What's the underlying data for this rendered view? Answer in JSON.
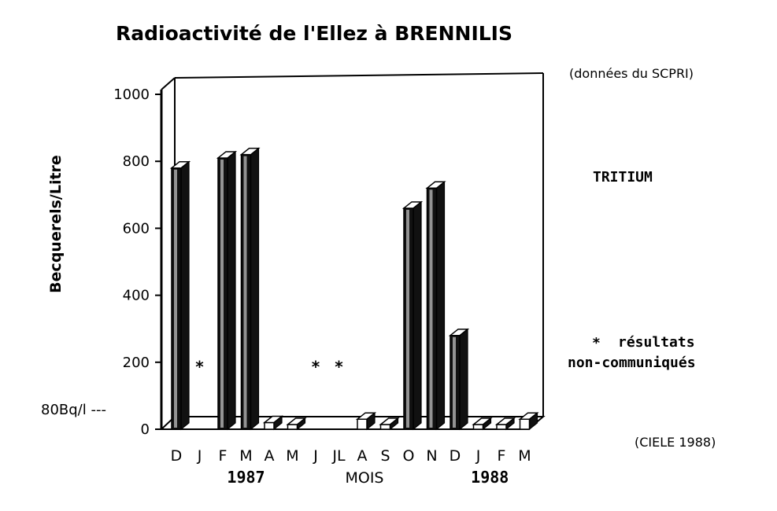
{
  "chart_data": {
    "type": "bar",
    "title": "Radioactivité de l'Ellez à BRENNILIS",
    "source_note": "(données du SCPRI)",
    "substance": "TRITIUM",
    "legend_missing": {
      "symbol": "*",
      "line1": "résultats",
      "line2": "non-communiqués"
    },
    "credit": "(CIELE 1988)",
    "ylabel": "Becquerels/Litre",
    "xlabel": "MOIS",
    "ylim": [
      0,
      1000
    ],
    "yticks": [
      "0",
      "200",
      "400",
      "600",
      "800",
      "1000"
    ],
    "threshold_label": "80Bq/l ---",
    "threshold_value": 80,
    "categories": [
      "D",
      "J",
      "F",
      "M",
      "A",
      "M",
      "J",
      "JL",
      "A",
      "S",
      "O",
      "N",
      "D",
      "J",
      "F",
      "M"
    ],
    "values": [
      780,
      null,
      810,
      820,
      20,
      10,
      null,
      null,
      30,
      10,
      660,
      720,
      280,
      10,
      10,
      30
    ],
    "missing_categories_index": [
      1,
      6,
      7
    ],
    "year_labels": [
      {
        "label": "1987",
        "between": [
          2,
          4
        ]
      },
      {
        "label": "1988",
        "between": [
          13,
          14
        ]
      }
    ],
    "grid": false,
    "colors": {
      "bar_side": "#111111",
      "bar_face": "#ffffff",
      "axes": "#000000"
    }
  }
}
